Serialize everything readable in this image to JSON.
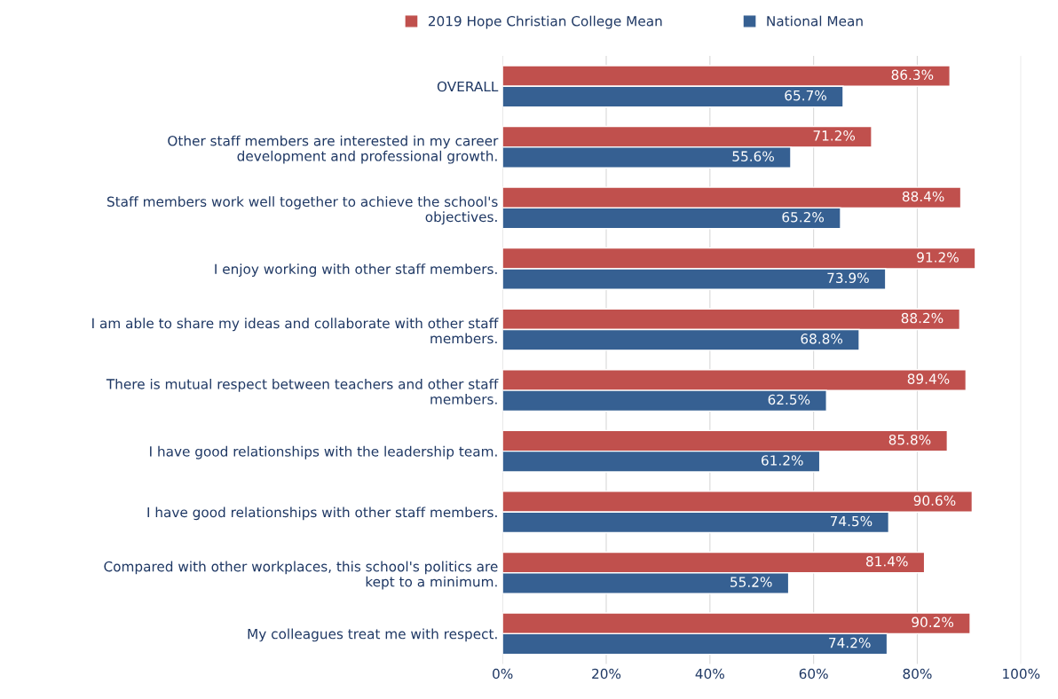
{
  "chart_data": {
    "type": "bar",
    "orientation": "horizontal",
    "categories": [
      "OVERALL",
      "Other staff members are interested in my career\ndevelopment and professional growth.",
      "Staff members work well together to achieve the school's\nobjectives.",
      "I enjoy working with other staff members.",
      "I am able to share my ideas and collaborate with other staff\nmembers.",
      "There is mutual respect between teachers and other staff\nmembers.",
      "I have good relationships with the leadership team.",
      "I have good relationships with other staff members.",
      "Compared with other workplaces, this school's politics are\nkept to a minimum.",
      "My colleagues treat me with respect."
    ],
    "series": [
      {
        "name": "2019 Hope Christian College Mean",
        "color": "#c0504d",
        "values": [
          86.3,
          71.2,
          88.4,
          91.2,
          88.2,
          89.4,
          85.8,
          90.6,
          81.4,
          90.2
        ],
        "value_labels": [
          "86.3%",
          "71.2%",
          "88.4%",
          "91.2%",
          "88.2%",
          "89.4%",
          "85.8%",
          "90.6%",
          "81.4%",
          "90.2%"
        ]
      },
      {
        "name": "National Mean",
        "color": "#366092",
        "values": [
          65.7,
          55.6,
          65.2,
          73.9,
          68.8,
          62.5,
          61.2,
          74.5,
          55.2,
          74.2
        ],
        "value_labels": [
          "65.7%",
          "55.6%",
          "65.2%",
          "73.9%",
          "68.8%",
          "62.5%",
          "61.2%",
          "74.5%",
          "55.2%",
          "74.2%"
        ]
      }
    ],
    "xlim": [
      0,
      100
    ],
    "xticks": [
      {
        "value": 0,
        "label": "0%"
      },
      {
        "value": 20,
        "label": "20%"
      },
      {
        "value": 40,
        "label": "40%"
      },
      {
        "value": 60,
        "label": "60%"
      },
      {
        "value": 80,
        "label": "80%"
      },
      {
        "value": 100,
        "label": "100%"
      }
    ],
    "grid": "x",
    "legend": "top"
  }
}
